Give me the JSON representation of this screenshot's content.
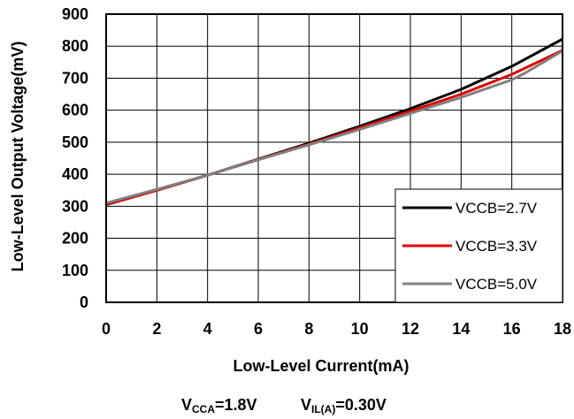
{
  "chart_data": {
    "type": "line",
    "xlabel": "Low-Level Current(mA)",
    "ylabel": "Low-Level Output Voltage(mV)",
    "xlim": [
      0,
      18
    ],
    "ylim": [
      0,
      900
    ],
    "xticks": [
      0,
      2,
      4,
      6,
      8,
      10,
      12,
      14,
      16,
      18
    ],
    "yticks": [
      0,
      100,
      200,
      300,
      400,
      500,
      600,
      700,
      800,
      900
    ],
    "grid": true,
    "legend_position": "bottom-right",
    "series": [
      {
        "name": "VCCB=2.7V",
        "color": "#000000",
        "x": [
          0,
          2,
          4,
          6,
          8,
          10,
          12,
          14,
          16,
          18
        ],
        "y": [
          305,
          350,
          397,
          447,
          497,
          550,
          605,
          665,
          737,
          822
        ]
      },
      {
        "name": "VCCB=3.3V",
        "color": "#e00000",
        "x": [
          0,
          2,
          4,
          6,
          8,
          10,
          12,
          14,
          16,
          18
        ],
        "y": [
          305,
          350,
          397,
          446,
          494,
          545,
          597,
          650,
          712,
          787
        ]
      },
      {
        "name": "VCCB=5.0V",
        "color": "#808080",
        "x": [
          0,
          2,
          4,
          6,
          8,
          10,
          12,
          14,
          16,
          16.5,
          18
        ],
        "y": [
          310,
          353,
          397,
          445,
          492,
          540,
          590,
          640,
          695,
          715,
          785
        ]
      }
    ],
    "conditions": [
      {
        "main": "V",
        "sub": "CCA",
        "rest": "=1.8V"
      },
      {
        "main": "V",
        "sub": "IL(A)",
        "rest": "=0.30V"
      }
    ]
  }
}
